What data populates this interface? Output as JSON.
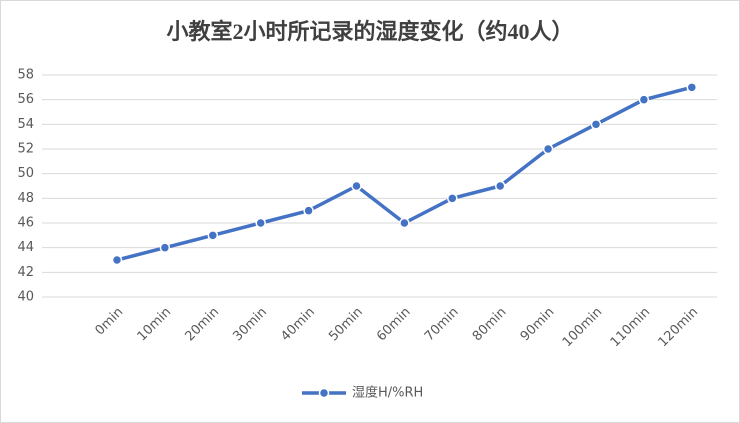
{
  "chart_data": {
    "type": "line",
    "title": "小教室2小时所记录的湿度变化（约40人）",
    "categories": [
      "0min",
      "10min",
      "20min",
      "30min",
      "40min",
      "50min",
      "60min",
      "70min",
      "80min",
      "90min",
      "100min",
      "110min",
      "120min"
    ],
    "series": [
      {
        "name": "湿度H/%RH",
        "color": "#4472c4",
        "values": [
          43,
          44,
          45,
          46,
          47,
          49,
          46,
          48,
          49,
          52,
          54,
          56,
          57
        ]
      }
    ],
    "ylim": [
      40,
      58
    ],
    "yticks": [
      40,
      42,
      44,
      46,
      48,
      50,
      52,
      54,
      56,
      58
    ],
    "grid": true,
    "legend": "bottom"
  }
}
